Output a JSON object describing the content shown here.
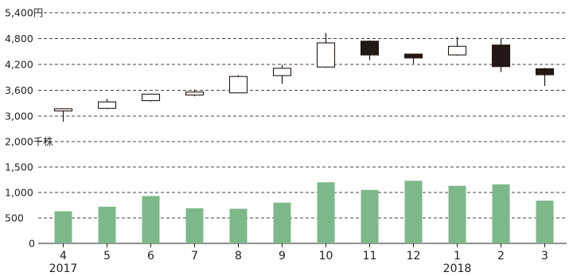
{
  "chart_data": [
    {
      "type": "candlestick",
      "unit_label": "円",
      "y_ticks": [
        "3,000",
        "3,600",
        "4,200",
        "4,800",
        "5,400円"
      ],
      "ylim": [
        3000,
        5400
      ],
      "grid": true,
      "categories": [
        "4",
        "5",
        "6",
        "7",
        "8",
        "9",
        "10",
        "11",
        "12",
        "1",
        "2",
        "3"
      ],
      "year_labels": [
        {
          "at": "4",
          "label": "2017"
        },
        {
          "at": "1",
          "label": "2018"
        }
      ],
      "ohlc": [
        {
          "open": 3120,
          "high": 3180,
          "low": 2870,
          "close": 3170
        },
        {
          "open": 3180,
          "high": 3400,
          "low": 3160,
          "close": 3330
        },
        {
          "open": 3360,
          "high": 3520,
          "low": 3340,
          "close": 3510
        },
        {
          "open": 3490,
          "high": 3620,
          "low": 3460,
          "close": 3560
        },
        {
          "open": 3540,
          "high": 3950,
          "low": 3530,
          "close": 3920
        },
        {
          "open": 3940,
          "high": 4190,
          "low": 3750,
          "close": 4110
        },
        {
          "open": 4140,
          "high": 4930,
          "low": 4120,
          "close": 4700
        },
        {
          "open": 4740,
          "high": 4760,
          "low": 4300,
          "close": 4420
        },
        {
          "open": 4440,
          "high": 4450,
          "low": 4220,
          "close": 4350
        },
        {
          "open": 4420,
          "high": 4840,
          "low": 4400,
          "close": 4620
        },
        {
          "open": 4650,
          "high": 4790,
          "low": 4020,
          "close": 4150
        },
        {
          "open": 4100,
          "high": 4120,
          "low": 3700,
          "close": 3960
        }
      ],
      "colors": {
        "up": "#ffffff",
        "down": "#231815",
        "outline": "#231815"
      }
    },
    {
      "type": "bar",
      "unit_label": "千株",
      "y_ticks": [
        "0",
        "500",
        "1,000",
        "1,500",
        "2,000千株"
      ],
      "ylim": [
        0,
        2000
      ],
      "grid": true,
      "categories": [
        "4",
        "5",
        "6",
        "7",
        "8",
        "9",
        "10",
        "11",
        "12",
        "1",
        "2",
        "3"
      ],
      "values": [
        630,
        720,
        930,
        690,
        680,
        800,
        1200,
        1050,
        1230,
        1130,
        1160,
        840
      ],
      "colors": {
        "bar": "#7db88a"
      }
    }
  ]
}
